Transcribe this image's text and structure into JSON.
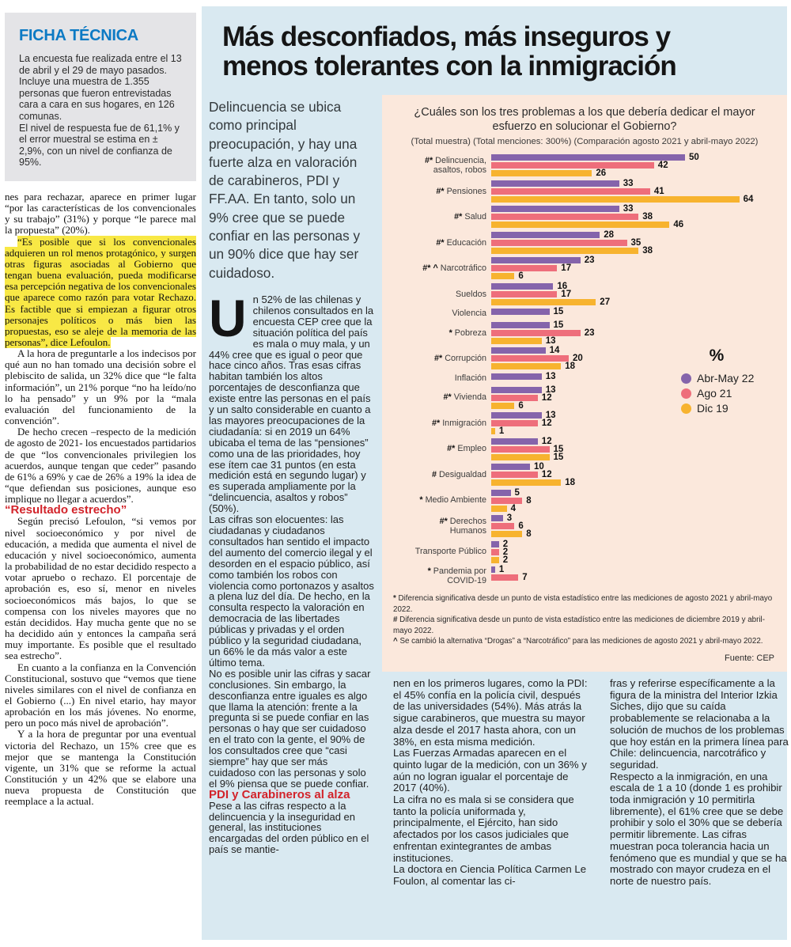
{
  "colors": {
    "panel_blue": "#d9e9f1",
    "chart_bg": "#fbe8dc",
    "ficha_bg": "#e4e4e7",
    "ficha_title_blue": "#0d7ac4",
    "subhead_red": "#d2232a",
    "highlight_yellow": "#f8e845",
    "bar_purple": "#8564ab",
    "bar_pink": "#ee6e7b",
    "bar_yellow": "#f7b32f"
  },
  "ficha": {
    "title": "FICHA TÉCNICA",
    "body": "La encuesta fue realizada entre el 13 de abril y el 29 de mayo pasados. Incluye una muestra de 1.355 personas que fueron entrevistadas cara a cara en sus hogares, en 126 comunas.\nEl nivel de respuesta fue de 61,1% y el error muestral se estima en ± 2,9%, con un nivel de confianza de 95%."
  },
  "left_column": {
    "p1": "nes para rechazar, aparece en primer lugar “por las características de los convencionales y su trabajo” (31%) y porque “le parece mal la propuesta” (20%).",
    "highlight": "“Es posible que si los convencionales adquieren un rol menos protagónico, y surgen otras figuras asociadas al Gobierno que tengan buena evaluación, pueda modificarse esa percepción negativa de los convencionales que aparece como razón para votar Rechazo. Es factible que si empiezan a figurar otros personajes políticos o más bien las propuestas, eso se aleje de la memoria de las personas”, dice Lefoulon.",
    "p3": "A la hora de preguntarle a los indecisos por qué aun no han tomado una decisión sobre el plebiscito de salida, un 32% dice que “le falta información”, un 21% porque “no ha leído/no lo ha pensado” y un 9% por la “mala evaluación del funcionamiento de la convención”.",
    "p4": "De hecho crecen –respecto de la medición de agosto de 2021- los encuestados partidarios de que “los convencionales privilegien los acuerdos, aunque tengan que ceder” pasando de 61% a 69% y cae de 26% a 19% la idea de “que defiendan sus posiciones, aunque eso implique no llegar a acuerdos”.",
    "subhead": "“Resultado estrecho”",
    "p5": "Según precisó Lefoulon, “si vemos por nivel socioeconómico y por nivel de educación, a medida que aumenta el nivel de educación y nivel socioeconómico, aumenta la probabilidad de no estar decidido respecto a votar apruebo o rechazo. El porcentaje de aprobación es, eso sí, menor en niveles socioeconómicos más bajos, lo que se compensa con los niveles mayores que no están decididos. Hay mucha gente que no se ha decidido aún y entonces la campaña será muy importante. Es posible que el resultado sea estrecho”.",
    "p6": "En cuanto a la confianza en la Convención Constitucional, sostuvo que “vemos que tiene niveles similares con el nivel de confianza en el Gobierno (...) En nivel etario, hay mayor aprobación en los más jóvenes. No enorme, pero un poco más nivel de aprobación”.",
    "p7": "Y a la hora de preguntar por una eventual victoria del Rechazo, un 15% cree que es mejor que se mantenga la Constitución vigente, un 31% que se reforme la actual Constitución y un 42% que se elabore una nueva propuesta de Constitución que reemplace a la actual."
  },
  "panel": {
    "headline": "Más desconfiados, más inseguros y\nmenos tolerantes con la inmigración",
    "intro": "Delincuencia se ubica como principal preocupación, y hay una fuerte alza en valoración de carabineros, PDI y FF.AA. En tanto, solo un 9% cree que se puede confiar en las personas y un 90% dice que hay ser cuidadoso.",
    "dropcap": "U",
    "body1": "n 52% de las chilenas y chilenos consultados en la encuesta CEP cree que la situación política del país es mala o muy mala, y un 44% cree que es igual o peor que hace cinco años. Tras esas cifras habitan también los altos porcentajes de desconfianza que existe entre las personas en el país y un salto considerable en cuanto a las mayores preocupaciones de la ciudadanía: si en 2019 un 64% ubicaba el tema de las “pensiones” como una de las prioridades, hoy ese ítem cae 31 puntos (en esta medición está en segundo lugar) y es superada ampliamente por la “delincuencia, asaltos y robos” (50%).",
    "body2": "Las cifras son elocuentes: las ciudadanas y ciudadanos consultados han sentido el impacto del aumento del comercio ilegal y el desorden en el espacio público, así como también los robos con violencia como portonazos y asaltos a plena luz del día. De hecho, en la consulta respecto la valoración en democracia de las libertades públicas y privadas y el orden público y la seguridad ciudadana, un 66% le da más valor a este último tema.",
    "body3": "No es posible unir las cifras y sacar conclusiones. Sin embargo, la desconfianza entre iguales es algo que llama la atención: frente a la pregunta si se puede confiar en las personas o hay que ser cuidadoso en el trato con la gente, el 90% de los consultados cree que “casi siempre” hay que ser más cuidadoso con las personas y solo el 9% piensa que se puede confiar.",
    "subhead": "PDI y Carabineros al alza",
    "body4": "Pese a las cifras respecto a la delincuencia y la inseguridad en general, las instituciones encargadas del orden público en el país se mantie-",
    "col_a": [
      "nen en los primeros lugares, como la PDI: el 45% confía en la policía civil, después de las universidades (54%). Más atrás la sigue carabineros, que muestra su mayor alza desde el 2017 hasta ahora, con un 38%, en esta misma medición.",
      "Las Fuerzas Armadas aparecen en el quinto lugar de la medición, con un 36% y aún no logran igualar el porcentaje de 2017 (40%).",
      "La cifra no es mala si se considera que tanto la policía uniformada y, principalmente, el Ejército, han sido afectados por los casos judiciales que enfrentan exintegrantes de ambas instituciones.",
      "La doctora en Ciencia Política Carmen Le Foulon, al comentar las ci-"
    ],
    "col_b": [
      "fras y referirse específicamente a la figura de la ministra del Interior Izkia Siches, dijo que su caída probablemente se relacionaba a la solución de muchos de los problemas que hoy están en la primera línea para Chile: delincuencia, narcotráfico y seguridad.",
      "Respecto a la inmigración, en una escala de 1 a 10 (donde 1 es prohibir toda inmigración y 10 permitirla libremente), el 61% cree que se debe prohibir y solo el 30% que se debería permitir libremente. Las cifras muestran poca tolerancia hacia un fenómeno que es mundial y que se ha mostrado con mayor crudeza en el norte de nuestro país."
    ]
  },
  "chart_data": {
    "type": "bar",
    "orientation": "horizontal",
    "title": "¿Cuáles son los tres problemas a los que debería dedicar el mayor esfuerzo en solucionar el Gobierno?",
    "subtitle": "(Total muestra) (Total menciones: 300%) (Comparación agosto 2021 y abril-mayo 2022)",
    "unit_label": "%",
    "xlim": [
      0,
      64
    ],
    "legend_position": "right",
    "categories": [
      {
        "prefix": "#*",
        "label": "Delincuencia,\nasaltos, robos"
      },
      {
        "prefix": "#*",
        "label": "Pensiones"
      },
      {
        "prefix": "#*",
        "label": "Salud"
      },
      {
        "prefix": "#*",
        "label": "Educación"
      },
      {
        "prefix": "#* ^",
        "label": "Narcotráfico"
      },
      {
        "prefix": "",
        "label": "Sueldos"
      },
      {
        "prefix": "",
        "label": "Violencia"
      },
      {
        "prefix": "*",
        "label": "Pobreza"
      },
      {
        "prefix": "#*",
        "label": "Corrupción"
      },
      {
        "prefix": "",
        "label": "Inflación"
      },
      {
        "prefix": "#*",
        "label": "Vivienda"
      },
      {
        "prefix": "#*",
        "label": "Inmigración"
      },
      {
        "prefix": "#*",
        "label": "Empleo"
      },
      {
        "prefix": "#",
        "label": "Desigualdad"
      },
      {
        "prefix": "*",
        "label": "Medio Ambiente"
      },
      {
        "prefix": "#*",
        "label": "Derechos\nHumanos"
      },
      {
        "prefix": "",
        "label": "Transporte Público"
      },
      {
        "prefix": "*",
        "label": "Pandemia por\nCOVID-19"
      }
    ],
    "series": [
      {
        "key": "abr-may-22",
        "name": "Abr-May 22",
        "color": "#8564ab",
        "values": [
          50,
          33,
          33,
          28,
          23,
          16,
          15,
          15,
          14,
          13,
          13,
          13,
          12,
          10,
          5,
          3,
          2,
          1
        ]
      },
      {
        "key": "ago-21",
        "name": "Ago 21",
        "color": "#ee6e7b",
        "values": [
          42,
          41,
          38,
          35,
          17,
          17,
          null,
          23,
          20,
          null,
          12,
          12,
          15,
          12,
          8,
          6,
          2,
          7
        ]
      },
      {
        "key": "dic-19",
        "name": "Dic 19",
        "color": "#f7b32f",
        "values": [
          26,
          64,
          46,
          38,
          6,
          27,
          null,
          13,
          18,
          null,
          6,
          1,
          15,
          18,
          4,
          8,
          2,
          null
        ]
      }
    ],
    "footnotes": [
      {
        "marker": "*",
        "text": "Diferencia significativa desde un punto de vista estadístico entre las mediciones de agosto 2021 y abril-mayo 2022."
      },
      {
        "marker": "#",
        "text": "Diferencia significativa desde un punto de vista estadístico entre las mediciones de diciembre 2019 y abril-mayo 2022."
      },
      {
        "marker": "^",
        "text": "Se cambió la alternativa “Drogas” a “Narcotráfico” para las mediciones de agosto 2021 y abril-mayo 2022."
      }
    ],
    "source": "Fuente: CEP"
  }
}
